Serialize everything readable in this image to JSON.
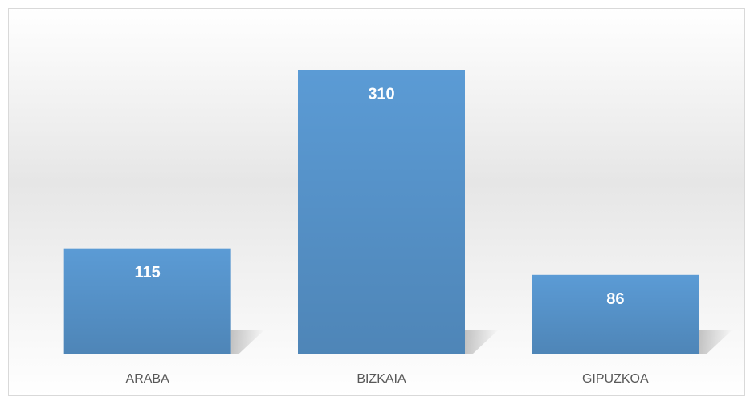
{
  "chart_data": {
    "type": "bar",
    "categories": [
      "ARABA",
      "BIZKAIA",
      "GIPUZKOA"
    ],
    "values": [
      115,
      310,
      86
    ],
    "color": "#5b9bd5"
  }
}
